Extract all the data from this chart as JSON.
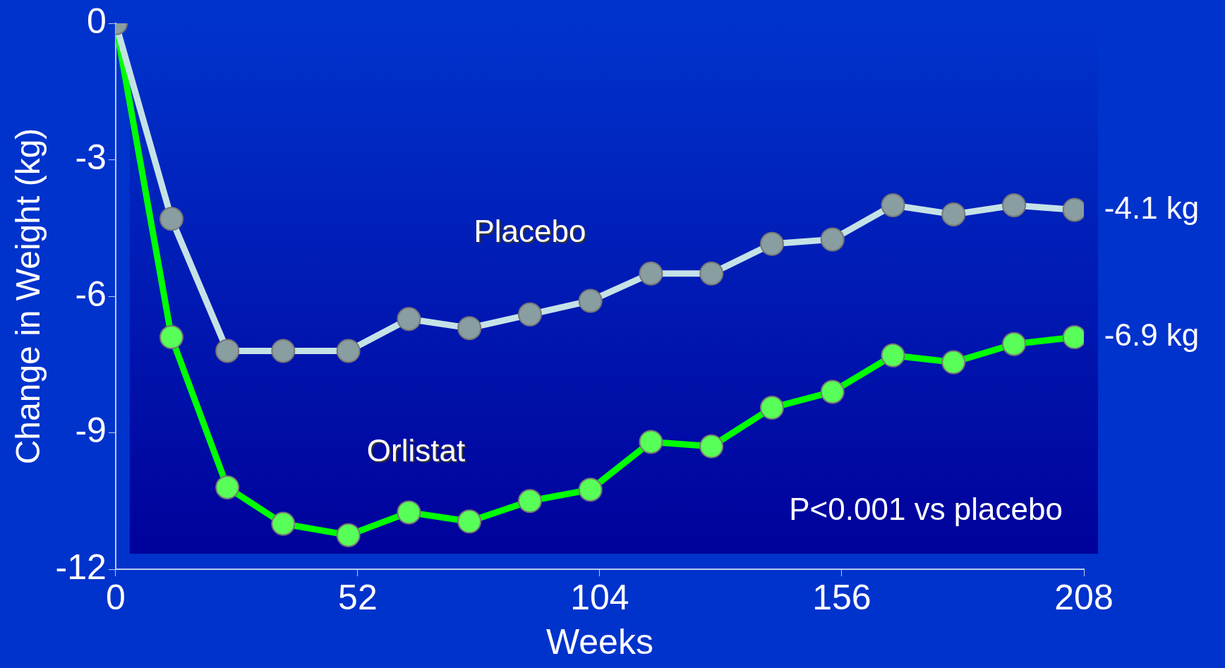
{
  "chart_data": {
    "type": "line",
    "xlabel": "Weeks",
    "ylabel": "Change in Weight (kg)",
    "x": [
      0,
      12,
      24,
      36,
      50,
      63,
      76,
      89,
      102,
      115,
      128,
      141,
      154,
      167,
      180,
      193,
      206
    ],
    "series": [
      {
        "name": "Placebo",
        "color": "#c4e2e6",
        "values": [
          0,
          -4.3,
          -7.2,
          -7.2,
          -7.2,
          -6.5,
          -6.7,
          -6.4,
          -6.1,
          -5.5,
          -5.5,
          -4.85,
          -4.75,
          -4.0,
          -4.2,
          -4.0,
          -4.1
        ]
      },
      {
        "name": "Orlistat",
        "color": "#00ff00",
        "values": [
          0,
          -6.9,
          -10.2,
          -11.0,
          -11.25,
          -10.75,
          -10.95,
          -10.5,
          -10.25,
          -9.2,
          -9.3,
          -8.45,
          -8.1,
          -7.3,
          -7.45,
          -7.05,
          -6.9
        ]
      }
    ],
    "xlim": [
      0,
      208
    ],
    "xticks": [
      0,
      52,
      104,
      156,
      208
    ],
    "ylim": [
      -12,
      0
    ],
    "yticks": [
      0,
      -3,
      -6,
      -9,
      -12
    ],
    "grid": false,
    "legend": false,
    "marker": "circle",
    "line_style": "solid",
    "annotations": [
      {
        "text": "-4.1 kg",
        "x": 206,
        "y": -4.1
      },
      {
        "text": "-6.9 kg",
        "x": 206,
        "y": -6.9
      },
      "P<0.001 vs placebo"
    ]
  }
}
